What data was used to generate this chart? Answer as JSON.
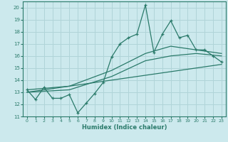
{
  "title": "",
  "xlabel": "Humidex (Indice chaleur)",
  "ylabel": "",
  "bg_color": "#cce9ed",
  "grid_color": "#b0d4d8",
  "line_color": "#2a7a6a",
  "xlim": [
    -0.5,
    23.5
  ],
  "ylim": [
    11,
    20.5
  ],
  "yticks": [
    11,
    12,
    13,
    14,
    15,
    16,
    17,
    18,
    19,
    20
  ],
  "xticks": [
    0,
    1,
    2,
    3,
    4,
    5,
    6,
    7,
    8,
    9,
    10,
    11,
    12,
    13,
    14,
    15,
    16,
    17,
    18,
    19,
    20,
    21,
    22,
    23
  ],
  "series1_x": [
    0,
    1,
    2,
    3,
    4,
    5,
    6,
    7,
    8,
    9,
    10,
    11,
    12,
    13,
    14,
    15,
    16,
    17,
    18,
    19,
    20,
    21,
    22,
    23
  ],
  "series1_y": [
    13.2,
    12.4,
    13.4,
    12.5,
    12.5,
    12.8,
    11.3,
    12.1,
    12.9,
    13.8,
    15.9,
    17.0,
    17.5,
    17.8,
    20.2,
    16.3,
    17.8,
    18.9,
    17.5,
    17.7,
    16.5,
    16.5,
    16.0,
    15.5
  ],
  "series2_x": [
    0,
    23
  ],
  "series2_y": [
    13.0,
    15.3
  ],
  "series3_x": [
    0,
    5,
    10,
    14,
    17,
    20,
    23
  ],
  "series3_y": [
    13.2,
    13.5,
    14.8,
    16.2,
    16.8,
    16.5,
    16.2
  ],
  "series4_x": [
    0,
    5,
    10,
    14,
    17,
    20,
    23
  ],
  "series4_y": [
    13.0,
    13.2,
    14.3,
    15.6,
    16.0,
    16.2,
    16.0
  ]
}
